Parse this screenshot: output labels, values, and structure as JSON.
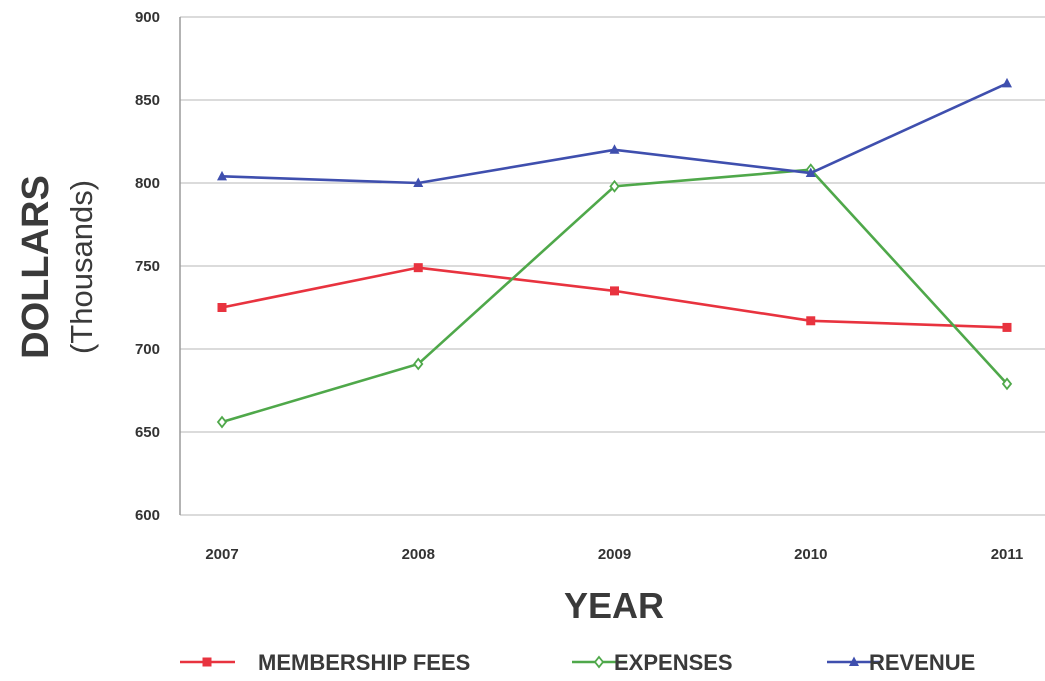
{
  "chart_data": {
    "type": "line",
    "categories": [
      "2007",
      "2008",
      "2009",
      "2010",
      "2011"
    ],
    "series": [
      {
        "name": "MEMBERSHIP FEES",
        "color": "#e8333f",
        "marker": "square",
        "values": [
          725,
          749,
          735,
          717,
          713
        ]
      },
      {
        "name": "EXPENSES",
        "color": "#4fa84a",
        "marker": "diamond",
        "values": [
          656,
          691,
          798,
          808,
          679
        ]
      },
      {
        "name": "REVENUE",
        "color": "#3f4fae",
        "marker": "triangle",
        "values": [
          804,
          800,
          820,
          806,
          860
        ]
      }
    ],
    "ylabel_main": "DOLLARS",
    "ylabel_sub": "(Thousands)",
    "xlabel": "YEAR",
    "ylim": [
      600,
      900
    ],
    "yticks": [
      "600",
      "650",
      "700",
      "750",
      "800",
      "850",
      "900"
    ],
    "grid": true,
    "legend_position": "bottom"
  }
}
